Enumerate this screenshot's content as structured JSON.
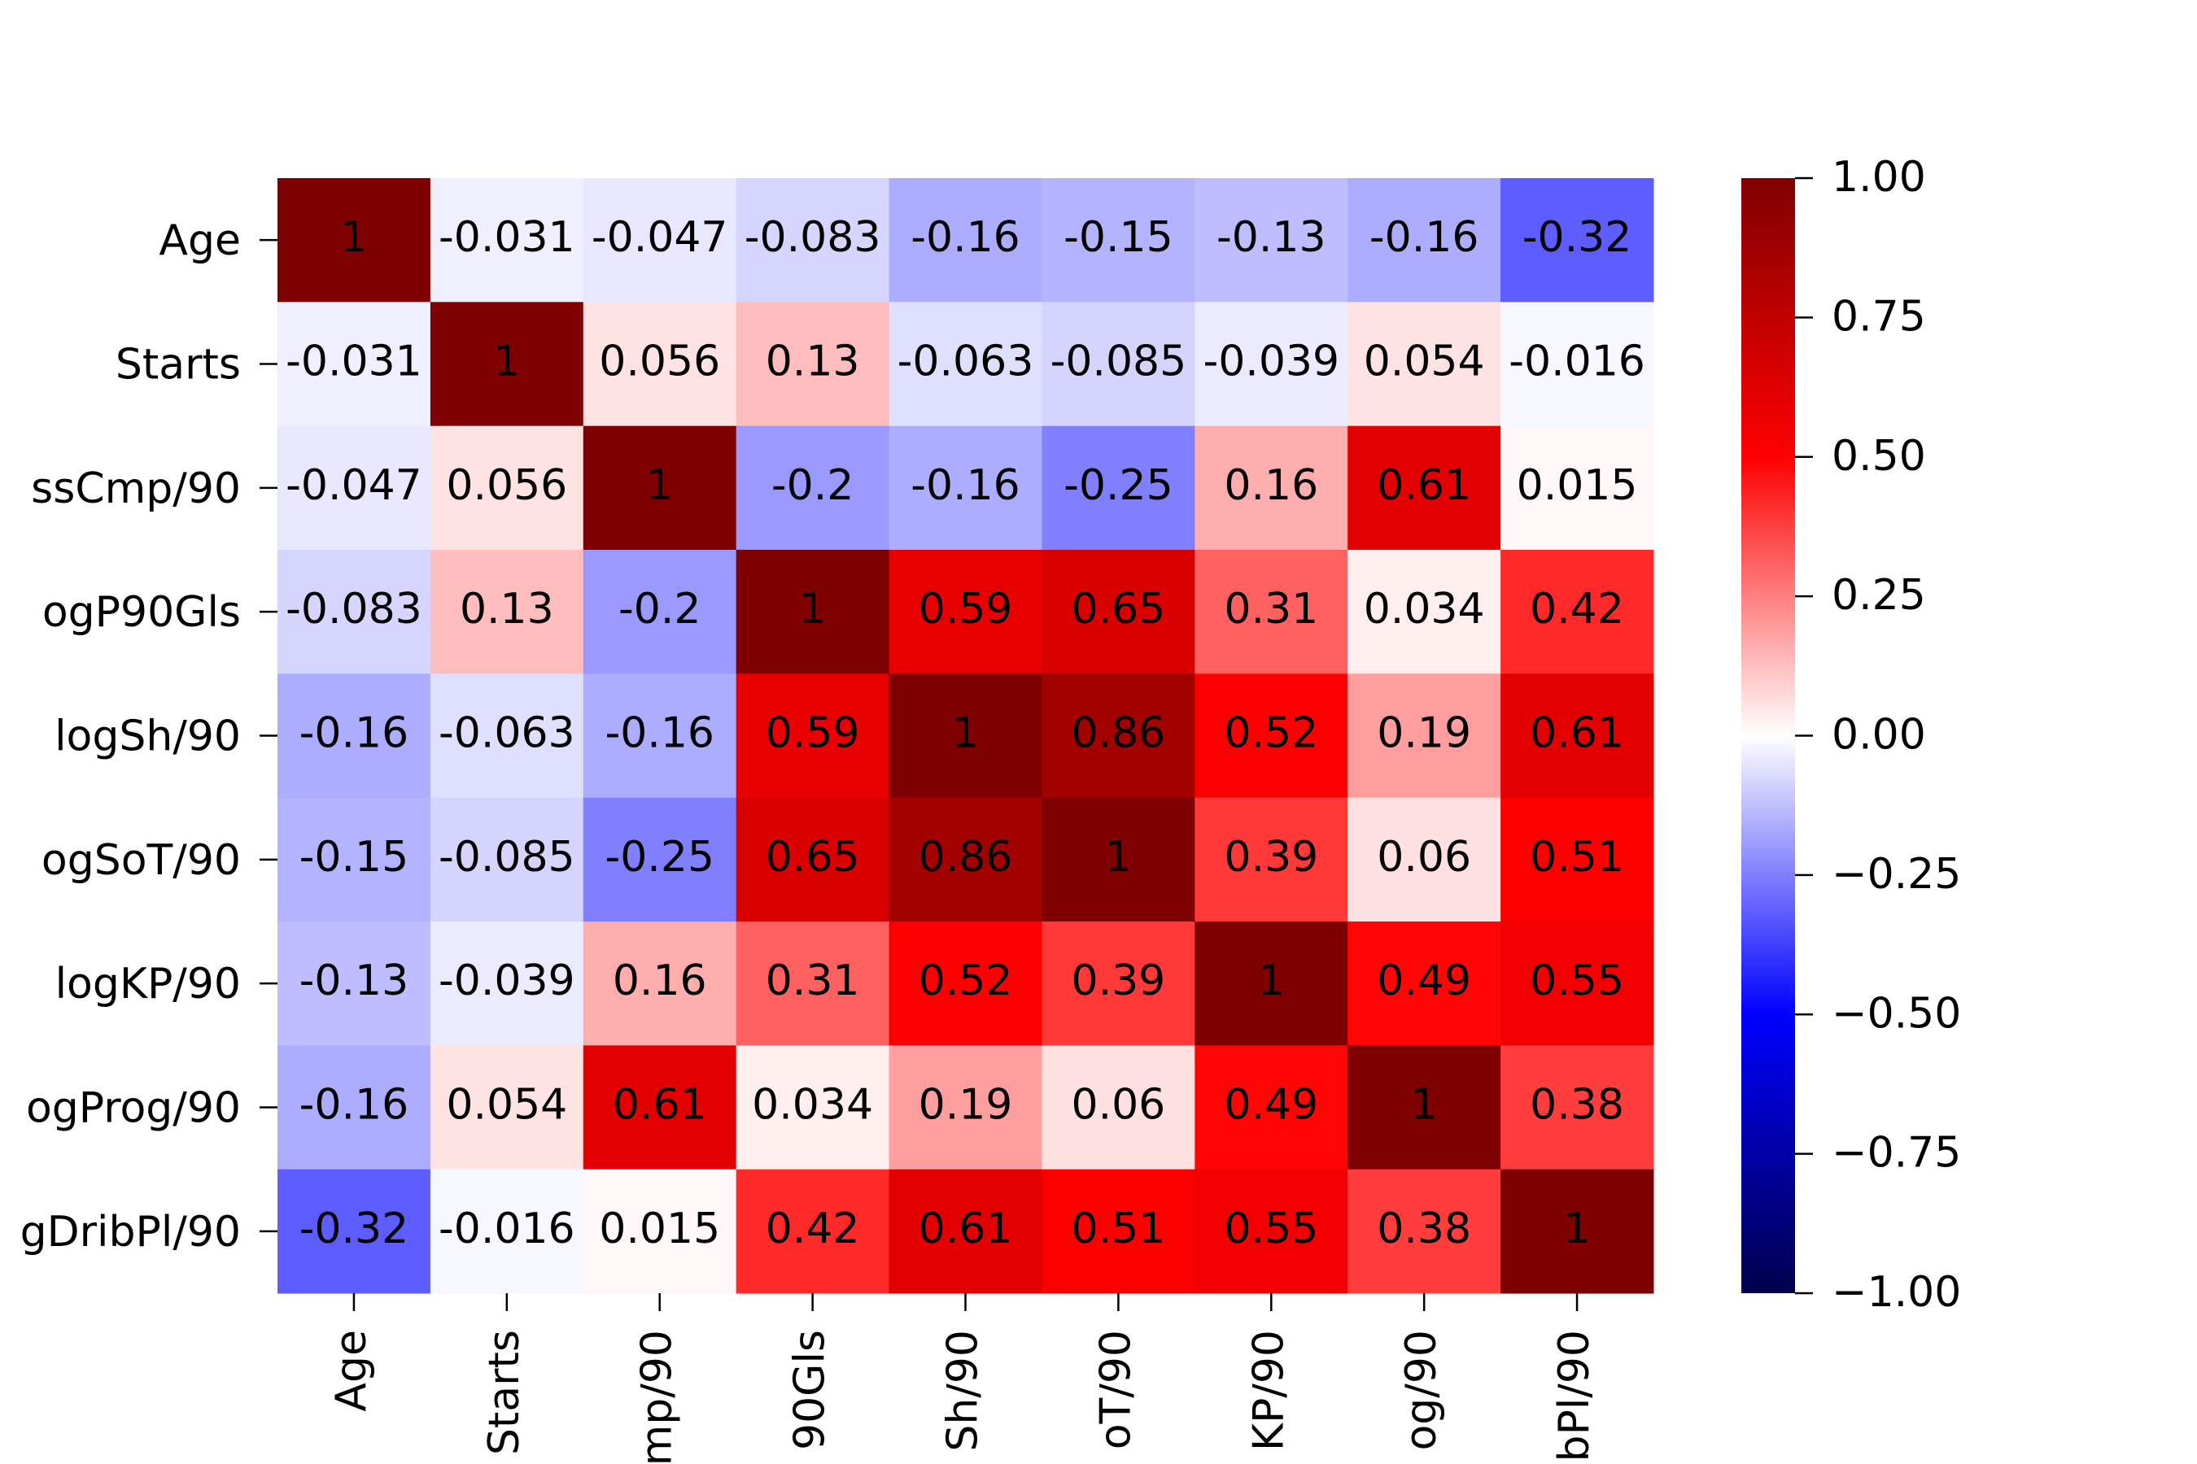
{
  "chart_data": {
    "type": "heatmap",
    "x_categories": [
      "Age",
      "Starts",
      "mp/90",
      "90Gls",
      "Sh/90",
      "oT/90",
      "KP/90",
      "og/90",
      "bPl/90"
    ],
    "y_categories": [
      "Age",
      "Starts",
      "ssCmp/90",
      "ogP90Gls",
      "logSh/90",
      "ogSoT/90",
      "logKP/90",
      "ogProg/90",
      "gDribPl/90"
    ],
    "values": [
      [
        1,
        -0.031,
        -0.047,
        -0.083,
        -0.16,
        -0.15,
        -0.13,
        -0.16,
        -0.32
      ],
      [
        -0.031,
        1,
        0.056,
        0.13,
        -0.063,
        -0.085,
        -0.039,
        0.054,
        -0.016
      ],
      [
        -0.047,
        0.056,
        1,
        -0.2,
        -0.16,
        -0.25,
        0.16,
        0.61,
        0.015
      ],
      [
        -0.083,
        0.13,
        -0.2,
        1,
        0.59,
        0.65,
        0.31,
        0.034,
        0.42
      ],
      [
        -0.16,
        -0.063,
        -0.16,
        0.59,
        1,
        0.86,
        0.52,
        0.19,
        0.61
      ],
      [
        -0.15,
        -0.085,
        -0.25,
        0.65,
        0.86,
        1,
        0.39,
        0.06,
        0.51
      ],
      [
        -0.13,
        -0.039,
        0.16,
        0.31,
        0.52,
        0.39,
        1,
        0.49,
        0.55
      ],
      [
        -0.16,
        0.054,
        0.61,
        0.034,
        0.19,
        0.06,
        0.49,
        1,
        0.38
      ],
      [
        -0.32,
        -0.016,
        0.015,
        0.42,
        0.61,
        0.51,
        0.55,
        0.38,
        1
      ]
    ],
    "colormap": [
      "#00004c",
      "#0000ff",
      "#ffffff",
      "#ff0000",
      "#7f0000"
    ],
    "clim": [
      -1,
      1
    ],
    "cticks": [
      {
        "value": 1,
        "label": "1.00"
      },
      {
        "value": 0.75,
        "label": "0.75"
      },
      {
        "value": 0.5,
        "label": "0.50"
      },
      {
        "value": 0.25,
        "label": "0.25"
      },
      {
        "value": 0,
        "label": "0.00"
      },
      {
        "value": -0.25,
        "label": "−0.25"
      },
      {
        "value": -0.5,
        "label": "−0.50"
      },
      {
        "value": -0.75,
        "label": "−0.75"
      },
      {
        "value": -1,
        "label": "−1.00"
      }
    ]
  }
}
